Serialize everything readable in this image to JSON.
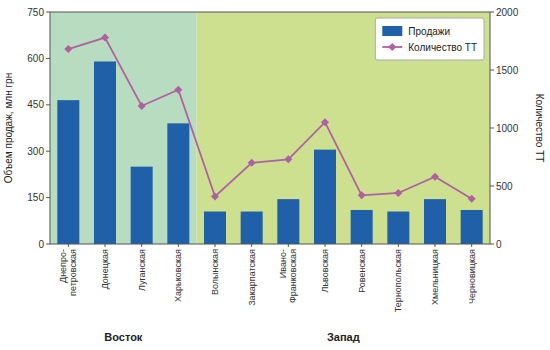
{
  "chart_data": {
    "type": "bar",
    "categories": [
      "Днепро-\nпетровская",
      "Донецкая",
      "Луганская",
      "Харьковская",
      "Волынская",
      "Закарпатская",
      "Ивано-\nФранковская",
      "Львовская",
      "Ровенская",
      "Тернопольская",
      "Хмельницкая",
      "Черновицкая"
    ],
    "series": [
      {
        "name": "Продажи",
        "type": "bar",
        "color": "#2060a8",
        "values": [
          465,
          590,
          250,
          390,
          105,
          105,
          145,
          305,
          110,
          105,
          145,
          110
        ]
      },
      {
        "name": "Количество ТТ",
        "type": "line",
        "axis": "y2",
        "color": "#b060a0",
        "marker": "diamond",
        "values": [
          1680,
          1780,
          1190,
          1330,
          410,
          700,
          730,
          1050,
          420,
          440,
          580,
          390
        ]
      }
    ],
    "y_label": "Объем продаж, млн грн",
    "y2_label": "Количество ТТ",
    "ylim": [
      0,
      750
    ],
    "yticks": [
      0,
      150,
      300,
      450,
      600,
      750
    ],
    "y2lim": [
      0,
      2000
    ],
    "y2ticks": [
      0,
      500,
      1000,
      1500,
      2000
    ],
    "grid": false,
    "legend": "upper right",
    "regions": [
      {
        "label": "Восток",
        "color": "#b8dcc0",
        "count": 4
      },
      {
        "label": "Запад",
        "color": "#cce090",
        "count": 8
      }
    ]
  }
}
